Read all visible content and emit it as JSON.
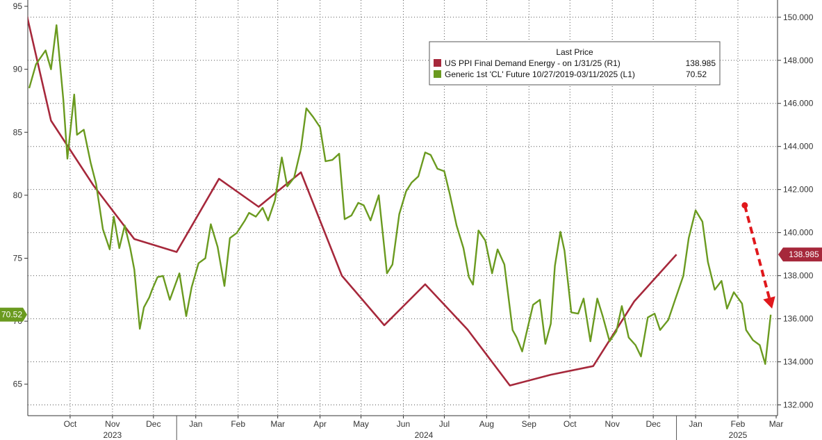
{
  "chart_data": {
    "type": "line",
    "legend": {
      "title": "Last Price",
      "placement": "top-right",
      "entries": [
        {
          "label": "US PPI Final Demand Energy -  on 1/31/25  (R1)",
          "value": "138.985",
          "color": "#a6283b"
        },
        {
          "label": "Generic 1st 'CL' Future 10/27/2019-03/11/2025  (L1)",
          "value": "70.52",
          "color": "#6a9a1f"
        }
      ]
    },
    "left_axis": {
      "range": [
        62.5,
        95.5
      ],
      "ticks": [
        "65",
        "70",
        "75",
        "80",
        "85",
        "90",
        "95"
      ]
    },
    "right_axis": {
      "range": [
        131.5,
        150.8
      ],
      "ticks": [
        "132.000",
        "134.000",
        "136.000",
        "138.000",
        "140.000",
        "142.000",
        "144.000",
        "146.000",
        "148.000",
        "150.000"
      ]
    },
    "x_axis": {
      "range": [
        "2023-09-14",
        "2025-03-16"
      ],
      "month_ticks": [
        {
          "label": "Oct",
          "date": "2023-10-15"
        },
        {
          "label": "Nov",
          "date": "2023-11-15"
        },
        {
          "label": "Dec",
          "date": "2023-12-15"
        },
        {
          "label": "Jan",
          "date": "2024-01-15"
        },
        {
          "label": "Feb",
          "date": "2024-02-15"
        },
        {
          "label": "Mar",
          "date": "2024-03-15"
        },
        {
          "label": "Apr",
          "date": "2024-04-15"
        },
        {
          "label": "May",
          "date": "2024-05-15"
        },
        {
          "label": "Jun",
          "date": "2024-06-15"
        },
        {
          "label": "Jul",
          "date": "2024-07-15"
        },
        {
          "label": "Aug",
          "date": "2024-08-15"
        },
        {
          "label": "Sep",
          "date": "2024-09-15"
        },
        {
          "label": "Oct",
          "date": "2024-10-15"
        },
        {
          "label": "Nov",
          "date": "2024-11-15"
        },
        {
          "label": "Dec",
          "date": "2024-12-15"
        },
        {
          "label": "Jan",
          "date": "2025-01-15"
        },
        {
          "label": "Feb",
          "date": "2025-02-15"
        },
        {
          "label": "Mar",
          "date": "2025-03-15"
        }
      ],
      "year_labels": [
        {
          "label": "2023",
          "date": "2023-11-15"
        },
        {
          "label": "2024",
          "date": "2024-06-30"
        },
        {
          "label": "2025",
          "date": "2025-02-15"
        }
      ],
      "year_dividers": [
        "2024-01-01",
        "2025-01-01"
      ]
    },
    "grid": true,
    "series": [
      {
        "name": "US PPI Final Demand Energy -  on 1/31/25  (R1)",
        "axis": "right",
        "color": "#a6283b",
        "x": [
          "2023-09-01",
          "2023-10-01",
          "2023-11-01",
          "2023-12-01",
          "2024-01-01",
          "2024-02-01",
          "2024-03-01",
          "2024-04-01",
          "2024-05-01",
          "2024-06-01",
          "2024-07-01",
          "2024-08-01",
          "2024-09-01",
          "2024-10-01",
          "2024-11-01",
          "2024-12-01",
          "2025-01-01"
        ],
        "y": [
          153.5,
          145.2,
          142.2,
          139.7,
          139.1,
          142.5,
          141.2,
          142.8,
          138.0,
          135.7,
          137.6,
          135.5,
          132.9,
          133.4,
          133.8,
          136.8,
          138.985
        ]
      },
      {
        "name": "Generic 1st 'CL' Future 10/27/2019-03/11/2025  (L1)",
        "axis": "left",
        "color": "#6a9a1f",
        "x": [
          "2023-09-15",
          "2023-09-20",
          "2023-09-27",
          "2023-10-01",
          "2023-10-05",
          "2023-10-10",
          "2023-10-13",
          "2023-10-18",
          "2023-10-20",
          "2023-10-25",
          "2023-10-30",
          "2023-11-03",
          "2023-11-08",
          "2023-11-13",
          "2023-11-16",
          "2023-11-20",
          "2023-11-24",
          "2023-11-28",
          "2023-12-01",
          "2023-12-05",
          "2023-12-08",
          "2023-12-12",
          "2023-12-14",
          "2023-12-18",
          "2023-12-22",
          "2023-12-27",
          "2024-01-03",
          "2024-01-08",
          "2024-01-12",
          "2024-01-17",
          "2024-01-22",
          "2024-01-26",
          "2024-01-31",
          "2024-02-05",
          "2024-02-09",
          "2024-02-14",
          "2024-02-20",
          "2024-02-23",
          "2024-02-28",
          "2024-03-04",
          "2024-03-08",
          "2024-03-13",
          "2024-03-18",
          "2024-03-22",
          "2024-03-27",
          "2024-04-01",
          "2024-04-05",
          "2024-04-10",
          "2024-04-15",
          "2024-04-19",
          "2024-04-24",
          "2024-04-29",
          "2024-05-03",
          "2024-05-08",
          "2024-05-13",
          "2024-05-17",
          "2024-05-22",
          "2024-05-28",
          "2024-06-03",
          "2024-06-07",
          "2024-06-12",
          "2024-06-17",
          "2024-06-21",
          "2024-06-26",
          "2024-07-01",
          "2024-07-05",
          "2024-07-10",
          "2024-07-15",
          "2024-07-19",
          "2024-07-24",
          "2024-07-29",
          "2024-08-02",
          "2024-08-05",
          "2024-08-09",
          "2024-08-14",
          "2024-08-19",
          "2024-08-23",
          "2024-08-28",
          "2024-09-03",
          "2024-09-06",
          "2024-09-10",
          "2024-09-13",
          "2024-09-18",
          "2024-09-23",
          "2024-09-27",
          "2024-10-01",
          "2024-10-04",
          "2024-10-08",
          "2024-10-11",
          "2024-10-16",
          "2024-10-21",
          "2024-10-25",
          "2024-10-30",
          "2024-11-04",
          "2024-11-08",
          "2024-11-13",
          "2024-11-18",
          "2024-11-22",
          "2024-11-27",
          "2024-12-02",
          "2024-12-06",
          "2024-12-11",
          "2024-12-16",
          "2024-12-20",
          "2024-12-26",
          "2024-12-31",
          "2025-01-06",
          "2025-01-10",
          "2025-01-15",
          "2025-01-20",
          "2025-01-24",
          "2025-01-29",
          "2025-02-03",
          "2025-02-07",
          "2025-02-12",
          "2025-02-18",
          "2025-02-21",
          "2025-02-26",
          "2025-03-03",
          "2025-03-07",
          "2025-03-11"
        ],
        "y": [
          88.5,
          90.4,
          91.5,
          90.0,
          93.5,
          87.6,
          82.9,
          88.0,
          84.8,
          85.2,
          82.6,
          80.9,
          77.3,
          75.7,
          78.3,
          75.8,
          77.6,
          75.8,
          74.1,
          69.4,
          71.1,
          71.9,
          72.5,
          73.5,
          73.6,
          71.7,
          73.8,
          70.4,
          72.7,
          74.6,
          75.0,
          77.7,
          75.9,
          72.8,
          76.6,
          77.0,
          78.0,
          78.6,
          78.3,
          79.0,
          78.0,
          79.6,
          83.0,
          80.7,
          81.4,
          83.7,
          86.9,
          86.2,
          85.4,
          82.7,
          82.8,
          83.3,
          78.1,
          78.4,
          79.4,
          79.2,
          78.0,
          80.0,
          73.8,
          74.5,
          78.5,
          80.3,
          81.0,
          81.5,
          83.4,
          83.2,
          82.1,
          81.9,
          80.1,
          77.6,
          75.8,
          73.5,
          72.9,
          77.2,
          76.4,
          73.8,
          75.7,
          74.5,
          69.3,
          68.7,
          67.6,
          69.0,
          71.3,
          71.7,
          68.2,
          69.8,
          74.4,
          77.1,
          75.6,
          70.7,
          70.6,
          71.8,
          68.4,
          71.8,
          70.4,
          68.4,
          69.2,
          71.2,
          68.7,
          68.1,
          67.2,
          70.3,
          70.6,
          69.3,
          70.1,
          71.7,
          73.6,
          76.6,
          78.8,
          77.9,
          74.7,
          72.5,
          73.2,
          71.0,
          72.3,
          71.4,
          69.3,
          68.5,
          68.1,
          66.6,
          70.52
        ]
      }
    ],
    "price_tags": [
      {
        "text": "138.985",
        "axis": "right",
        "value": 138.985,
        "color": "#a6283b"
      },
      {
        "text": "70.52",
        "axis": "left",
        "value": 70.52,
        "color": "#6a9a1f"
      }
    ],
    "annotation_arrow": {
      "color": "#e0181c",
      "from": {
        "date": "2025-02-20",
        "value": 79.2
      },
      "to": {
        "date": "2025-03-12",
        "value": 71.0
      }
    }
  }
}
